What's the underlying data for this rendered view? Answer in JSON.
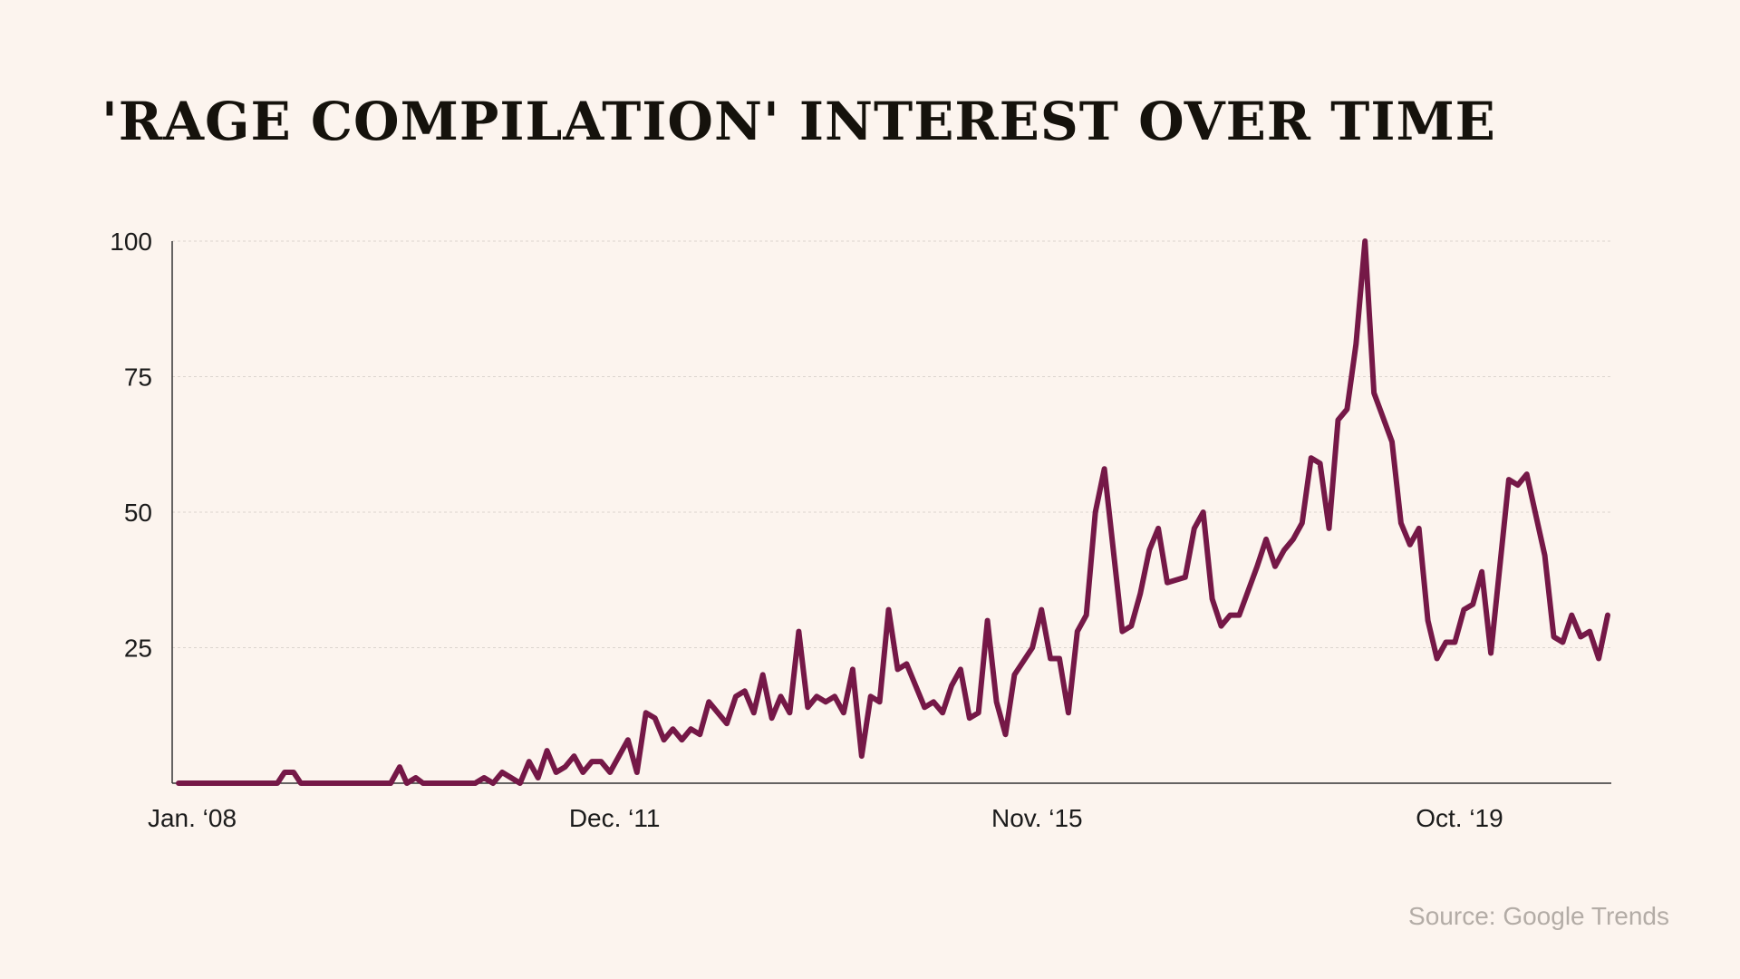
{
  "title": "'RAGE COMPILATION' INTEREST OVER TIME",
  "source": "Source: Google Trends",
  "colors": {
    "background": "#fcf4ee",
    "line": "#751847",
    "grid": "#dcd5cf",
    "axis": "#333333"
  },
  "chart_data": {
    "type": "line",
    "title": "'RAGE COMPILATION' INTEREST OVER TIME",
    "xlabel": "",
    "ylabel": "",
    "ylim": [
      0,
      100
    ],
    "yticks": [
      100,
      75,
      50,
      25
    ],
    "xticks": [
      {
        "label": "Jan. ‘08",
        "x": 0
      },
      {
        "label": "Dec. ‘11",
        "x": 47
      },
      {
        "label": "Nov. ‘15",
        "x": 94
      },
      {
        "label": "Oct. ‘19",
        "x": 141
      }
    ],
    "grid": true,
    "x_unit": "months since Jan. 2008",
    "series": [
      {
        "values": [
          [
            0,
            0
          ],
          [
            11,
            0
          ],
          [
            11.8,
            2
          ],
          [
            12.8,
            2
          ],
          [
            13.6,
            0
          ],
          [
            23.6,
            0
          ],
          [
            24.6,
            3
          ],
          [
            25.4,
            0
          ],
          [
            26.4,
            1
          ],
          [
            27.2,
            0
          ],
          [
            33,
            0
          ],
          [
            34,
            1
          ],
          [
            35,
            0
          ],
          [
            36,
            2
          ],
          [
            37,
            1
          ],
          [
            38,
            0
          ],
          [
            39,
            4
          ],
          [
            40,
            1
          ],
          [
            41,
            6
          ],
          [
            42,
            2
          ],
          [
            43,
            3
          ],
          [
            44,
            5
          ],
          [
            45,
            2
          ],
          [
            46,
            4
          ],
          [
            47,
            4
          ],
          [
            48,
            2
          ],
          [
            50,
            8
          ],
          [
            51,
            2
          ],
          [
            52,
            13
          ],
          [
            53,
            12
          ],
          [
            54,
            8
          ],
          [
            55,
            10
          ],
          [
            56,
            8
          ],
          [
            57,
            10
          ],
          [
            58,
            9
          ],
          [
            59,
            15
          ],
          [
            61,
            11
          ],
          [
            62,
            16
          ],
          [
            63,
            17
          ],
          [
            64,
            13
          ],
          [
            65,
            20
          ],
          [
            66,
            12
          ],
          [
            67,
            16
          ],
          [
            68,
            13
          ],
          [
            69,
            28
          ],
          [
            70,
            14
          ],
          [
            71,
            16
          ],
          [
            72,
            15
          ],
          [
            73,
            16
          ],
          [
            74,
            13
          ],
          [
            75,
            21
          ],
          [
            76,
            5
          ],
          [
            77,
            16
          ],
          [
            78,
            15
          ],
          [
            79,
            32
          ],
          [
            80,
            21
          ],
          [
            81,
            22
          ],
          [
            83,
            14
          ],
          [
            84,
            15
          ],
          [
            85,
            13
          ],
          [
            86,
            18
          ],
          [
            87,
            21
          ],
          [
            88,
            12
          ],
          [
            89,
            13
          ],
          [
            90,
            30
          ],
          [
            91,
            15
          ],
          [
            92,
            9
          ],
          [
            93,
            20
          ],
          [
            95,
            25
          ],
          [
            96,
            32
          ],
          [
            97,
            23
          ],
          [
            98,
            23
          ],
          [
            99,
            13
          ],
          [
            100,
            28
          ],
          [
            101,
            31
          ],
          [
            102,
            50
          ],
          [
            103,
            58
          ],
          [
            105,
            28
          ],
          [
            106,
            29
          ],
          [
            107,
            35
          ],
          [
            108,
            43
          ],
          [
            109,
            47
          ],
          [
            110,
            37
          ],
          [
            112,
            38
          ],
          [
            113,
            47
          ],
          [
            114,
            50
          ],
          [
            115,
            34
          ],
          [
            116,
            29
          ],
          [
            117,
            31
          ],
          [
            118,
            31
          ],
          [
            120,
            40
          ],
          [
            121,
            45
          ],
          [
            122,
            40
          ],
          [
            123,
            43
          ],
          [
            124,
            45
          ],
          [
            125,
            48
          ],
          [
            126,
            60
          ],
          [
            127,
            59
          ],
          [
            128,
            47
          ],
          [
            129,
            67
          ],
          [
            130,
            69
          ],
          [
            131,
            81
          ],
          [
            132,
            100
          ],
          [
            133,
            72
          ],
          [
            135,
            63
          ],
          [
            136,
            48
          ],
          [
            137,
            44
          ],
          [
            138,
            47
          ],
          [
            139,
            30
          ],
          [
            140,
            23
          ],
          [
            141,
            26
          ],
          [
            142,
            26
          ],
          [
            143,
            32
          ],
          [
            144,
            33
          ],
          [
            145,
            39
          ],
          [
            146,
            24
          ],
          [
            148,
            56
          ],
          [
            149,
            55
          ],
          [
            150,
            57
          ],
          [
            152,
            42
          ],
          [
            153,
            27
          ],
          [
            154,
            26
          ],
          [
            155,
            31
          ],
          [
            156,
            27
          ],
          [
            157,
            28
          ],
          [
            158,
            23
          ],
          [
            159,
            31
          ]
        ]
      }
    ]
  }
}
